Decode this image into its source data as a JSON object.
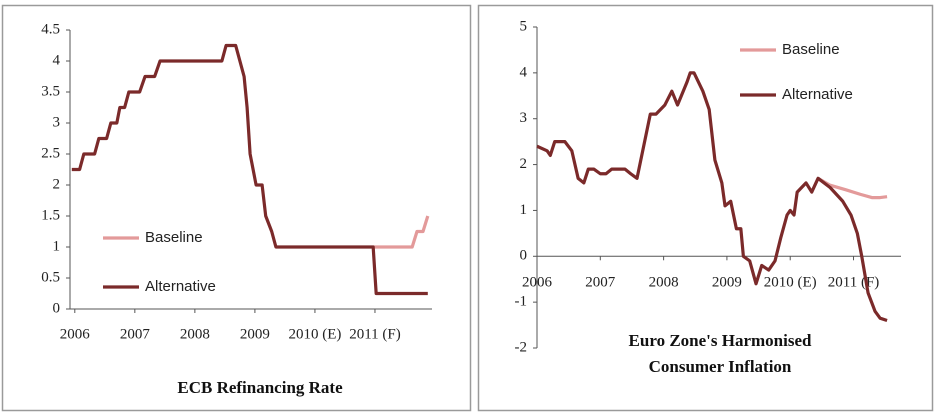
{
  "chart_data": [
    {
      "type": "line",
      "title": "ECB Refinancing Rate",
      "xlim": [
        2005.92,
        2011.95
      ],
      "xticks": [
        {
          "value": 2006,
          "label": "2006"
        },
        {
          "value": 2007,
          "label": "2007"
        },
        {
          "value": 2008,
          "label": "2008"
        },
        {
          "value": 2009,
          "label": "2009"
        },
        {
          "value": 2010,
          "label": "2010 (E)"
        },
        {
          "value": 2011,
          "label": "2011 (F)"
        }
      ],
      "ylim": [
        0,
        4.5
      ],
      "yticks": [
        0,
        0.5,
        1,
        1.5,
        2,
        2.5,
        3,
        3.5,
        4,
        4.5
      ],
      "legend_position": "center-left",
      "series": [
        {
          "name": "Baseline",
          "color": "#e39a9a",
          "x": [
            2010.97,
            2011.62,
            2011.7,
            2011.8,
            2011.88
          ],
          "values": [
            1,
            1,
            1.25,
            1.25,
            1.5
          ]
        },
        {
          "name": "Alternative",
          "color": "#7b2a2a",
          "x": [
            2005.95,
            2006.08,
            2006.15,
            2006.33,
            2006.4,
            2006.53,
            2006.6,
            2006.7,
            2006.75,
            2006.83,
            2006.9,
            2007.08,
            2007.17,
            2007.33,
            2007.42,
            2008.45,
            2008.52,
            2008.68,
            2008.82,
            2008.87,
            2008.92,
            2009.02,
            2009.12,
            2009.18,
            2009.28,
            2009.35,
            2010.97,
            2011.02,
            2011.88
          ],
          "values": [
            2.25,
            2.25,
            2.5,
            2.5,
            2.75,
            2.75,
            3,
            3,
            3.25,
            3.25,
            3.5,
            3.5,
            3.75,
            3.75,
            4,
            4,
            4.25,
            4.25,
            3.75,
            3.25,
            2.5,
            2,
            2,
            1.5,
            1.25,
            1,
            1,
            0.25,
            0.25
          ]
        }
      ]
    },
    {
      "type": "line",
      "title": "Euro Zone's Harmonised Consumer Inflation",
      "xlim": [
        2006,
        2011.75
      ],
      "xticks": [
        {
          "value": 2006,
          "label": "2006"
        },
        {
          "value": 2007,
          "label": "2007"
        },
        {
          "value": 2008,
          "label": "2008"
        },
        {
          "value": 2009,
          "label": "2009"
        },
        {
          "value": 2010,
          "label": "2010 (E)"
        },
        {
          "value": 2011,
          "label": "2011 (F)"
        }
      ],
      "ylim": [
        -2,
        5
      ],
      "yticks": [
        -2,
        -1,
        0,
        1,
        2,
        3,
        4,
        5
      ],
      "legend_position": "upper-right",
      "series": [
        {
          "name": "Baseline",
          "color": "#e39a9a",
          "x": [
            2010.44,
            2010.63,
            2010.88,
            2011.11,
            2011.29,
            2011.42,
            2011.53
          ],
          "values": [
            1.7,
            1.55,
            1.45,
            1.35,
            1.28,
            1.28,
            1.3
          ]
        },
        {
          "name": "Alternative",
          "color": "#7b2a2a",
          "x": [
            2006.0,
            2006.16,
            2006.21,
            2006.28,
            2006.44,
            2006.55,
            2006.65,
            2006.74,
            2006.81,
            2006.9,
            2007.0,
            2007.09,
            2007.18,
            2007.39,
            2007.48,
            2007.58,
            2007.79,
            2007.88,
            2008.02,
            2008.13,
            2008.22,
            2008.37,
            2008.42,
            2008.48,
            2008.62,
            2008.72,
            2008.81,
            2008.92,
            2008.97,
            2009.06,
            2009.15,
            2009.22,
            2009.26,
            2009.36,
            2009.46,
            2009.55,
            2009.66,
            2009.76,
            2009.85,
            2009.95,
            2010.0,
            2010.06,
            2010.11,
            2010.25,
            2010.34,
            2010.44,
            2010.63,
            2010.83,
            2010.96,
            2011.06,
            2011.13,
            2011.23,
            2011.34,
            2011.42,
            2011.53
          ],
          "values": [
            2.4,
            2.3,
            2.2,
            2.5,
            2.5,
            2.3,
            1.7,
            1.6,
            1.9,
            1.9,
            1.8,
            1.8,
            1.9,
            1.9,
            1.8,
            1.7,
            3.1,
            3.1,
            3.3,
            3.6,
            3.3,
            3.8,
            4.0,
            4.0,
            3.6,
            3.2,
            2.1,
            1.6,
            1.1,
            1.2,
            0.6,
            0.6,
            0.0,
            -0.1,
            -0.6,
            -0.2,
            -0.3,
            -0.1,
            0.4,
            0.9,
            1.0,
            0.9,
            1.4,
            1.6,
            1.4,
            1.7,
            1.5,
            1.2,
            0.9,
            0.5,
            0,
            -0.8,
            -1.2,
            -1.35,
            -1.4
          ]
        }
      ]
    }
  ]
}
